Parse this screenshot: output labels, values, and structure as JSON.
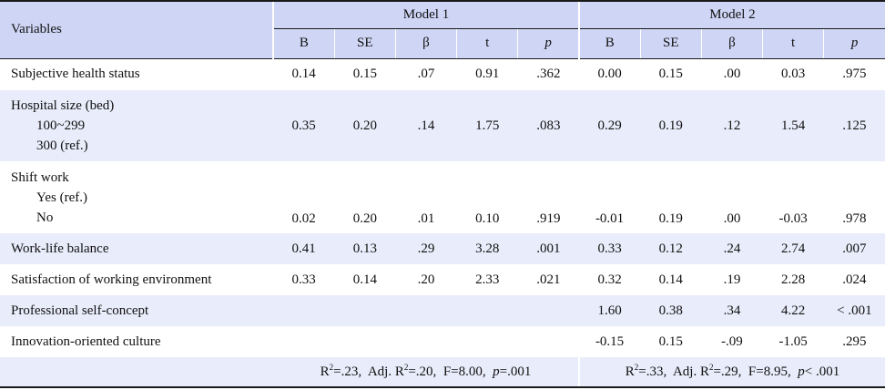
{
  "header": {
    "variables": "Variables",
    "model1": "Model 1",
    "model2": "Model 2",
    "cols": [
      "B",
      "SE",
      "β",
      "t",
      "p"
    ]
  },
  "rows": {
    "subjective": {
      "label": "Subjective health status",
      "m1": [
        "0.14",
        "0.15",
        ".07",
        "0.91",
        ".362"
      ],
      "m2": [
        "0.00",
        "0.15",
        ".00",
        "0.03",
        ".975"
      ]
    },
    "hospital": {
      "label": "Hospital size (bed)",
      "sub1": "100~299",
      "sub2": "300 (ref.)",
      "m1": [
        "0.35",
        "0.20",
        ".14",
        "1.75",
        ".083"
      ],
      "m2": [
        "0.29",
        "0.19",
        ".12",
        "1.54",
        ".125"
      ]
    },
    "shift": {
      "label": "Shift work",
      "sub1": "Yes (ref.)",
      "sub2": "No",
      "m1": [
        "0.02",
        "0.20",
        ".01",
        "0.10",
        ".919"
      ],
      "m2": [
        "-0.01",
        "0.19",
        ".00",
        "-0.03",
        ".978"
      ]
    },
    "worklife": {
      "label": "Work-life balance",
      "m1": [
        "0.41",
        "0.13",
        ".29",
        "3.28",
        ".001"
      ],
      "m2": [
        "0.33",
        "0.12",
        ".24",
        "2.74",
        ".007"
      ]
    },
    "satisfaction": {
      "label": "Satisfaction of working environment",
      "m1": [
        "0.33",
        "0.14",
        ".20",
        "2.33",
        ".021"
      ],
      "m2": [
        "0.32",
        "0.14",
        ".19",
        "2.28",
        ".024"
      ]
    },
    "professional": {
      "label": "Professional self-concept",
      "m2": [
        "1.60",
        "0.38",
        ".34",
        "4.22",
        "< .001"
      ]
    },
    "innovation": {
      "label": "Innovation-oriented culture",
      "m2": [
        "-0.15",
        "0.15",
        "-.09",
        "-1.05",
        ".295"
      ]
    }
  },
  "footer": {
    "m1": {
      "r2": "R",
      "r2_sup": "2",
      "r2_val": "=.23,",
      "adj": "Adj. R",
      "adj_sup": "2",
      "adj_val": "=.20,",
      "f": "F=8.00,",
      "p_label": "p",
      "p_val": "=.001"
    },
    "m2": {
      "r2": "R",
      "r2_sup": "2",
      "r2_val": "=.33,",
      "adj": "Adj. R",
      "adj_sup": "2",
      "adj_val": "=.29,",
      "f": "F=8.95,",
      "p_label": "p",
      "p_val": "< .001"
    }
  },
  "colors": {
    "header_bg": "#cfd6f5",
    "shade_bg": "#e9ecfa",
    "rule": "#1a1a1a"
  }
}
